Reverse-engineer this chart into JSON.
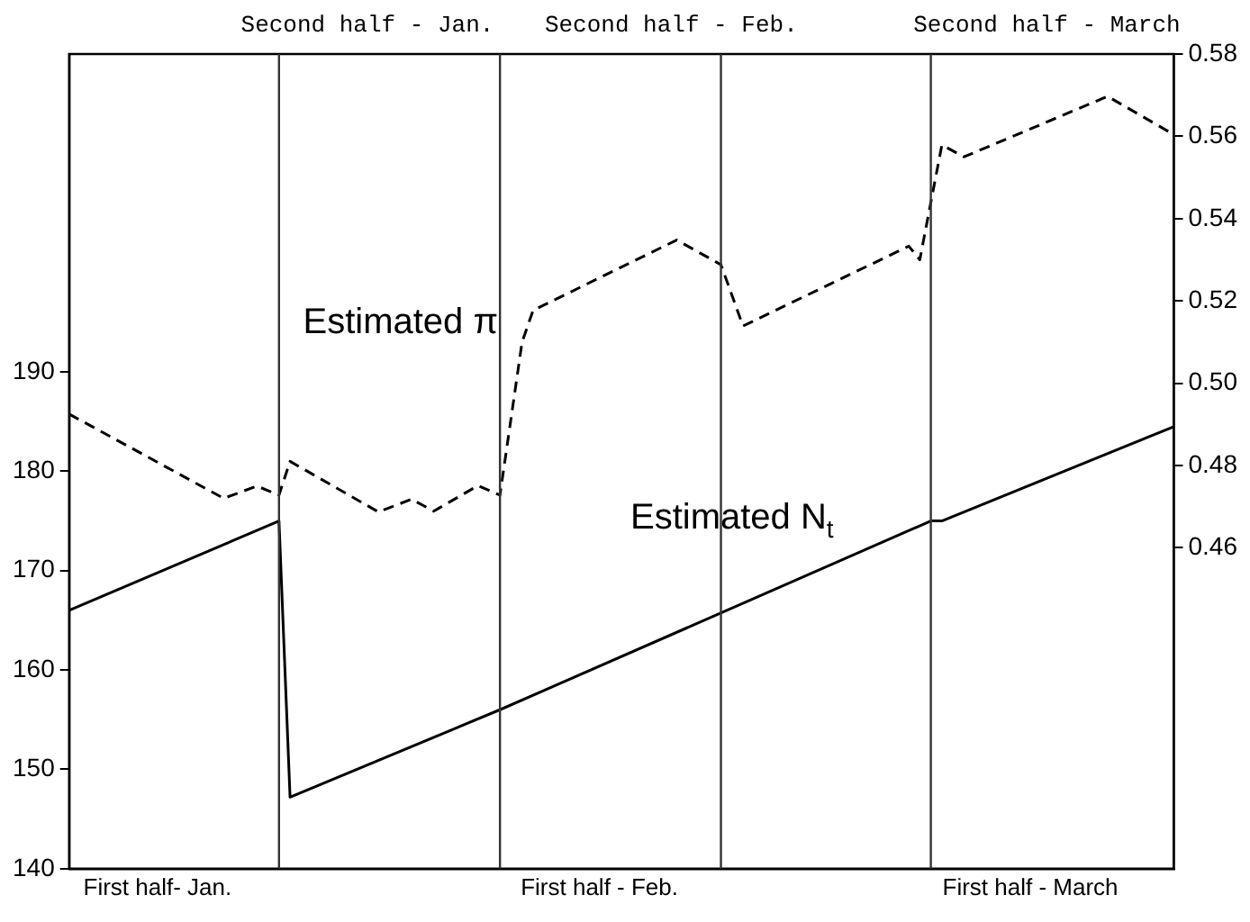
{
  "chart_data": {
    "type": "line",
    "categories": [
      null,
      null,
      null,
      null,
      null,
      null,
      null,
      null,
      "First half- Jan.",
      null,
      null,
      null,
      null,
      null,
      null,
      null,
      null,
      null,
      null,
      null,
      null,
      null,
      null,
      null,
      null,
      null,
      null,
      null,
      null,
      null,
      null,
      null,
      null,
      null,
      null,
      null,
      null,
      null,
      null,
      null,
      null,
      null,
      null,
      null,
      null,
      null,
      null,
      null,
      "First half - Feb.",
      null,
      null,
      null,
      null,
      null,
      null,
      null,
      null,
      null,
      null,
      null,
      null,
      null,
      null,
      null,
      null,
      null,
      null,
      null,
      null,
      null,
      null,
      null,
      null,
      null,
      null,
      null,
      null,
      null,
      null,
      null,
      null,
      null,
      null,
      null,
      null,
      null,
      null,
      "First half - March",
      null,
      null,
      null,
      null,
      null,
      null,
      null,
      null,
      null,
      null,
      null,
      null,
      null
    ],
    "ylim": [
      140,
      222
    ],
    "yticks": [
      140,
      150,
      160,
      170,
      180,
      190
    ],
    "y2lim": [
      0.382,
      0.58
    ],
    "y2ticks": [
      {
        "value": 0.46,
        "label": "0.46"
      },
      {
        "value": 0.48,
        "label": "0.48"
      },
      {
        "value": 0.5,
        "label": "0.50"
      },
      {
        "value": 0.52,
        "label": "0.52"
      },
      {
        "value": 0.54,
        "label": "0.54"
      },
      {
        "value": 0.56,
        "label": "0.56"
      },
      {
        "value": 0.58,
        "label": "0.58"
      }
    ],
    "series": [
      {
        "name": "Estimated N$_{t}$",
        "color": "#000000",
        "line_style": "solid",
        "values": [
          166,
          null,
          null,
          null,
          null,
          null,
          null,
          null,
          null,
          null,
          null,
          null,
          null,
          null,
          null,
          null,
          null,
          null,
          null,
          175,
          147.2,
          null,
          null,
          null,
          null,
          null,
          null,
          null,
          null,
          null,
          null,
          null,
          null,
          null,
          null,
          null,
          null,
          null,
          null,
          156,
          null,
          null,
          null,
          null,
          null,
          null,
          null,
          null,
          null,
          null,
          null,
          null,
          null,
          null,
          null,
          null,
          null,
          null,
          null,
          null,
          null,
          null,
          null,
          null,
          null,
          null,
          null,
          null,
          null,
          null,
          null,
          null,
          null,
          null,
          null,
          null,
          null,
          null,
          175,
          175,
          null,
          null,
          null,
          null,
          null,
          null,
          null,
          null,
          null,
          null,
          null,
          null,
          null,
          null,
          null,
          null,
          null,
          null,
          null,
          null,
          184.5
        ]
      },
      {
        "name": "Estimated π",
        "color": "#000000",
        "line_style": "dashed",
        "axis": "y2",
        "values": [
          0.4925,
          null,
          null,
          null,
          null,
          null,
          null,
          null,
          null,
          null,
          null,
          null,
          null,
          null,
          0.472,
          null,
          null,
          0.475,
          null,
          0.4728,
          0.481,
          null,
          null,
          null,
          null,
          null,
          null,
          null,
          0.4687,
          null,
          null,
          0.4718,
          null,
          0.4689,
          null,
          null,
          null,
          0.4751,
          null,
          0.4728,
          null,
          0.51,
          0.5177,
          null,
          null,
          null,
          null,
          null,
          null,
          null,
          null,
          null,
          null,
          null,
          null,
          0.5348,
          null,
          null,
          null,
          0.5288,
          null,
          0.5139,
          null,
          null,
          null,
          null,
          null,
          null,
          null,
          null,
          null,
          null,
          null,
          null,
          null,
          null,
          0.5333,
          0.53,
          null,
          0.5579,
          null,
          0.555,
          null,
          null,
          null,
          null,
          null,
          null,
          null,
          null,
          null,
          null,
          null,
          null,
          0.5697,
          null,
          null,
          null,
          null,
          null,
          0.5604
        ]
      }
    ],
    "annotations": [
      "Second half - Jan.",
      "Second half - Feb.",
      "Second half - March"
    ],
    "marker": "none",
    "grid": false,
    "legend": false
  }
}
